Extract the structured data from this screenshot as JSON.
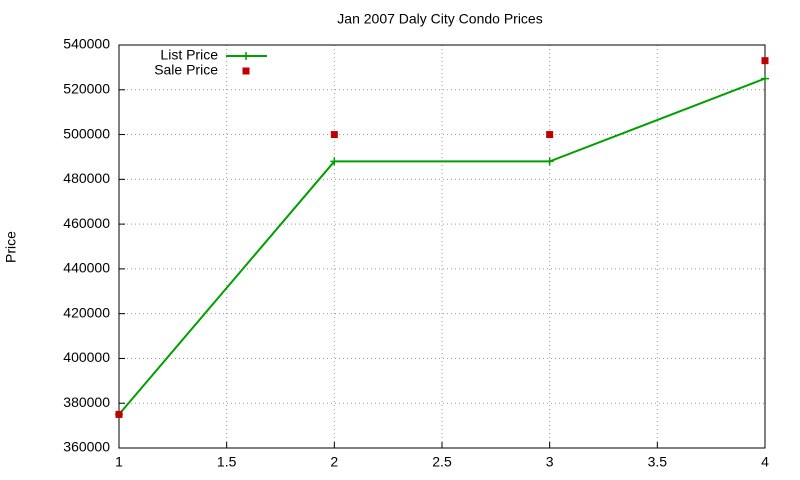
{
  "chart_data": {
    "type": "line",
    "title": "Jan 2007 Daly City Condo Prices",
    "y_label": "Price",
    "x": [
      1,
      2,
      3,
      4
    ],
    "series": [
      {
        "name": "List Price",
        "color": "#00a000",
        "style": "linespoints",
        "values": [
          375000,
          488000,
          488000,
          525000
        ]
      },
      {
        "name": "Sale Price",
        "color": "#c00000",
        "style": "points",
        "values": [
          375000,
          500000,
          500000,
          533000
        ]
      }
    ],
    "xlim": [
      1,
      4
    ],
    "xticks": [
      1,
      1.5,
      2,
      2.5,
      3,
      3.5,
      4
    ],
    "ylim": [
      360000,
      540000
    ],
    "yticks": [
      360000,
      380000,
      400000,
      420000,
      440000,
      460000,
      480000,
      500000,
      520000,
      540000
    ],
    "grid": true,
    "legend": "top-left"
  }
}
